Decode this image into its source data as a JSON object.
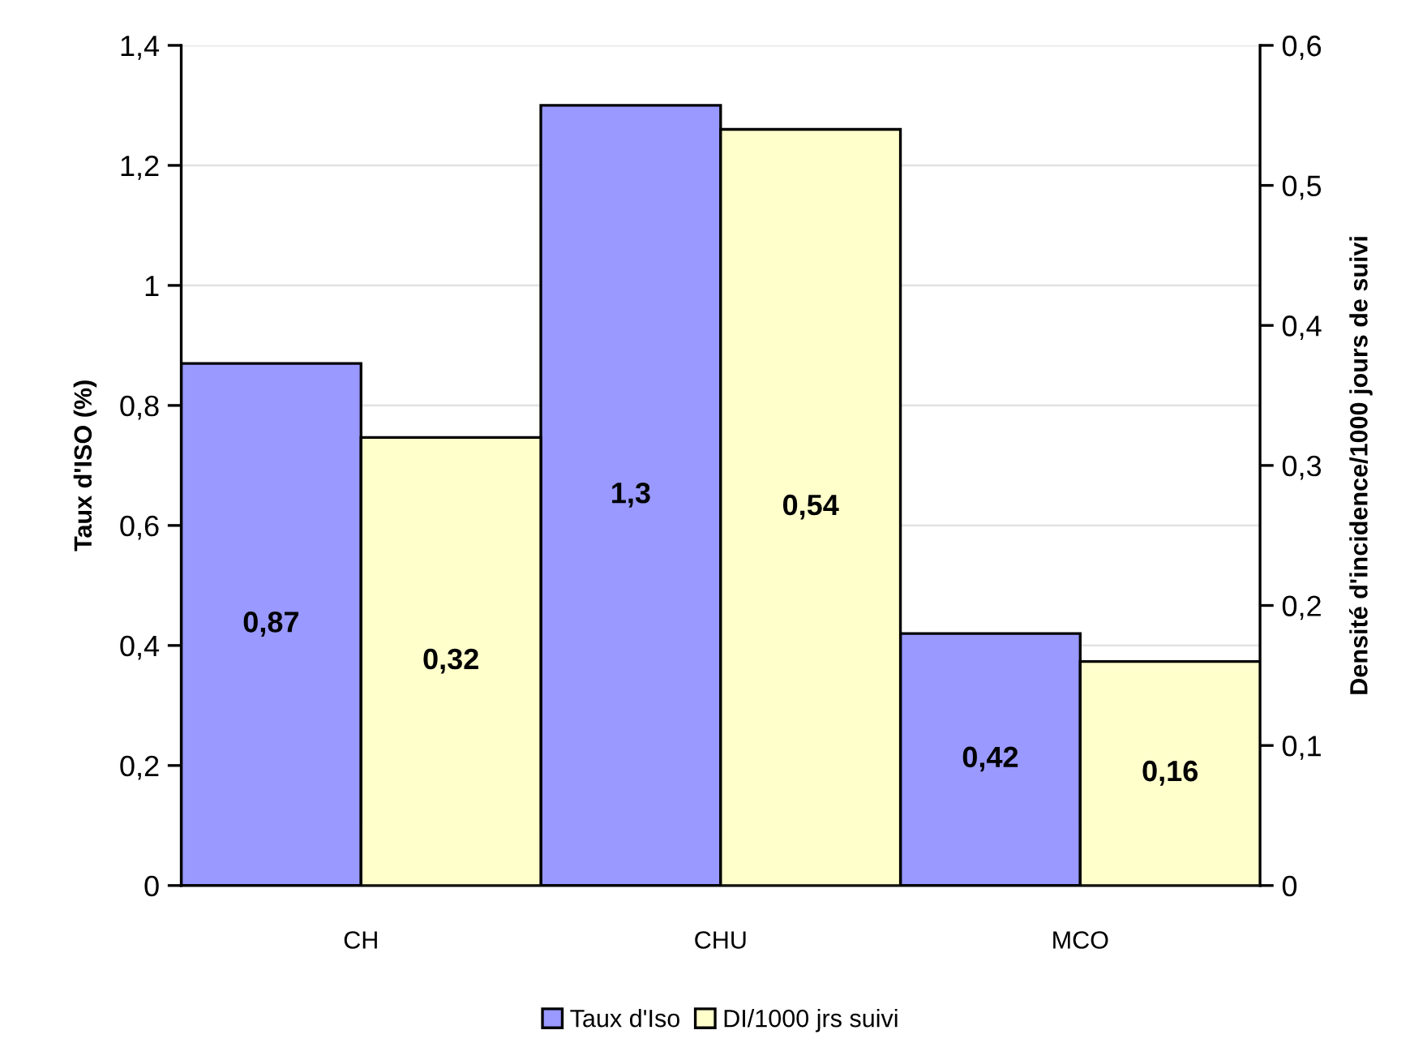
{
  "chart_data": {
    "type": "bar",
    "categories": [
      "CH",
      "CHU",
      "MCO"
    ],
    "series": [
      {
        "name": "Taux d'Iso",
        "color": "#9999ff",
        "values": [
          0.87,
          1.3,
          0.42
        ],
        "value_labels": [
          "0,87",
          "1,3",
          "0,42"
        ]
      },
      {
        "name": "DI/1000 jrs suivi",
        "color": "#ffffcc",
        "values": [
          0.32,
          0.54,
          0.16
        ],
        "value_labels": [
          "0,32",
          "0,54",
          "0,16"
        ],
        "axis": "y2"
      }
    ],
    "ylabel": "Taux d'ISO (%)",
    "y2label": "Densité d'incidence/1000 jours de suivi",
    "ylim": [
      0,
      1.4
    ],
    "yticks": [
      0,
      {
        "value": 0.2,
        "label": "0,2"
      },
      {
        "value": 0.4,
        "label": "0,4"
      },
      {
        "value": 0.6,
        "label": "0,6"
      },
      {
        "value": 0.8,
        "label": "0,8"
      },
      1,
      {
        "value": 1.2,
        "label": "1,2"
      },
      {
        "value": 1.4,
        "label": "1,4"
      }
    ],
    "y2lim": [
      0,
      0.6
    ],
    "y2ticks": [
      0,
      {
        "value": 0.1,
        "label": "0,1"
      },
      {
        "value": 0.2,
        "label": "0,2"
      },
      {
        "value": 0.3,
        "label": "0,3"
      },
      {
        "value": 0.4,
        "label": "0,4"
      },
      {
        "value": 0.5,
        "label": "0,5"
      },
      {
        "value": 0.6,
        "label": "0,6"
      }
    ],
    "grid": "y",
    "legend": "bottom"
  }
}
